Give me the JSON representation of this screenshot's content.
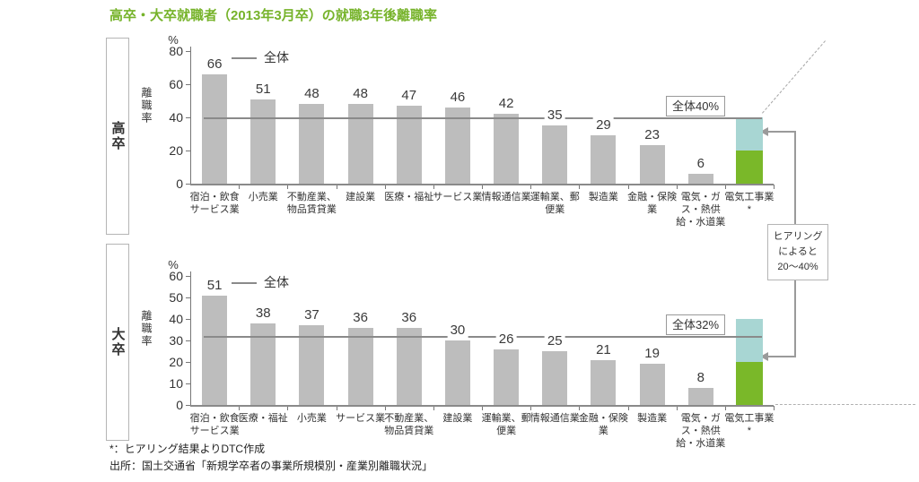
{
  "page": {
    "title": "高卒・大卒就職者（2013年3月卒）の就職3年後離職率",
    "footnotes": [
      "*：ヒアリング結果よりDTC作成",
      "出所：国土交通省「新規学卒者の事業所規模別・産業別離職状況」"
    ]
  },
  "annotation": {
    "lines": [
      "ヒアリング",
      "によると",
      "20～40%"
    ]
  },
  "colors": {
    "title_green": "#76b32a",
    "bar_gray": "#bdbdbd",
    "bar_green": "#7ab829",
    "bar_teal": "#a8d6d3",
    "overall_line_gray": "#8a8a8a",
    "connector_gray": "#9a9a9a"
  },
  "chart_data": [
    {
      "type": "bar",
      "group_label": "高卒",
      "unit_label": "%",
      "ylabel": "離職率",
      "ylim": [
        0,
        80
      ],
      "yticks": [
        0,
        20,
        40,
        60,
        80
      ],
      "legend_label": "全体",
      "overall_line_value": 40,
      "overall_line_label": "全体40%",
      "categories": [
        "宿泊・飲食サービス業",
        "小売業",
        "不動産業、物品賃貸業",
        "建設業",
        "医療・福祉",
        "サービス業",
        "情報通信業",
        "運輸業、郵便業",
        "製造業",
        "金融・保険業",
        "電気・ガス・熱供給・水道業",
        "電気工事業*"
      ],
      "values": [
        66,
        51,
        48,
        48,
        47,
        46,
        42,
        35,
        29,
        23,
        6,
        null
      ],
      "special_last_bar": {
        "category": "電気工事業*",
        "segments": [
          {
            "from": 0,
            "to": 20,
            "color": "#7ab829"
          },
          {
            "from": 20,
            "to": 40,
            "color": "#a8d6d3"
          }
        ]
      }
    },
    {
      "type": "bar",
      "group_label": "大卒",
      "unit_label": "%",
      "ylabel": "離職率",
      "ylim": [
        0,
        60
      ],
      "yticks": [
        0,
        10,
        20,
        30,
        40,
        50,
        60
      ],
      "legend_label": "全体",
      "overall_line_value": 32,
      "overall_line_label": "全体32%",
      "categories": [
        "宿泊・飲食サービス業",
        "医療・福祉",
        "小売業",
        "サービス業",
        "不動産業、物品賃貸業",
        "建設業",
        "運輸業、郵便業",
        "情報通信業",
        "金融・保険業",
        "製造業",
        "電気・ガス・熱供給・水道業",
        "電気工事業*"
      ],
      "values": [
        51,
        38,
        37,
        36,
        36,
        30,
        26,
        25,
        21,
        19,
        8,
        null
      ],
      "special_last_bar": {
        "category": "電気工事業*",
        "segments": [
          {
            "from": 0,
            "to": 20,
            "color": "#7ab829"
          },
          {
            "from": 20,
            "to": 40,
            "color": "#a8d6d3"
          }
        ]
      }
    }
  ]
}
